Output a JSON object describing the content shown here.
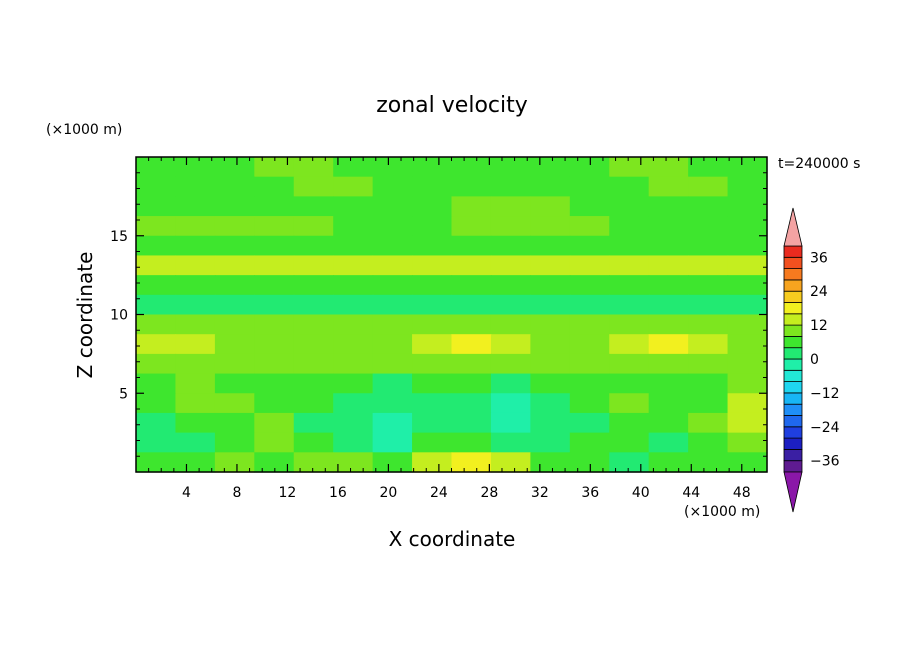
{
  "chart_data": {
    "type": "heatmap",
    "title": "zonal velocity",
    "xlabel": "X coordinate",
    "ylabel": "Z coordinate",
    "x_unit": "(×1000 m)",
    "y_unit": "(×1000 m)",
    "time_label": "t=240000 s",
    "xlim": [
      0,
      50
    ],
    "ylim": [
      0,
      20
    ],
    "x_ticks": [
      4,
      8,
      12,
      16,
      20,
      24,
      28,
      32,
      36,
      40,
      44,
      48
    ],
    "y_ticks": [
      5,
      10,
      15
    ],
    "colorbar": {
      "levels": [
        -40,
        -36,
        -32,
        -28,
        -24,
        -20,
        -16,
        -12,
        -8,
        -4,
        0,
        4,
        8,
        12,
        16,
        20,
        24,
        28,
        32,
        36,
        40
      ],
      "tick_labels": [
        36,
        24,
        12,
        0,
        -12,
        -24,
        -36
      ],
      "colors": [
        "#5f1b91",
        "#3a1fa3",
        "#1c1fc2",
        "#1f3fe0",
        "#1f68ee",
        "#1f8ff7",
        "#18b6f5",
        "#1fd6f0",
        "#22e8d6",
        "#1fefa8",
        "#22ea72",
        "#3ee62e",
        "#7de61f",
        "#c4ee1f",
        "#f2f01f",
        "#f7cc1f",
        "#f7a41f",
        "#f77a1f",
        "#f2501f",
        "#ea2b1f"
      ],
      "over_color": "#f4a3a3",
      "under_color": "#8a17a8"
    },
    "field_rows": [
      [
        1,
        1,
        1,
        2,
        2,
        1,
        1,
        1,
        1,
        1,
        1,
        1,
        2,
        2,
        1,
        1
      ],
      [
        1,
        1,
        1,
        1,
        2,
        2,
        1,
        1,
        1,
        1,
        1,
        1,
        1,
        2,
        2,
        1
      ],
      [
        1,
        1,
        1,
        1,
        1,
        1,
        1,
        1,
        2,
        2,
        2,
        1,
        1,
        1,
        1,
        1
      ],
      [
        2,
        2,
        2,
        2,
        2,
        1,
        1,
        1,
        2,
        2,
        2,
        2,
        1,
        1,
        1,
        1
      ],
      [
        1,
        1,
        1,
        1,
        1,
        1,
        1,
        1,
        1,
        1,
        1,
        1,
        1,
        1,
        1,
        1
      ],
      [
        3,
        3,
        3,
        3,
        3,
        3,
        3,
        3,
        3,
        3,
        3,
        3,
        3,
        3,
        3,
        3
      ],
      [
        1,
        1,
        1,
        1,
        1,
        1,
        1,
        1,
        1,
        1,
        1,
        1,
        1,
        1,
        1,
        1
      ],
      [
        0,
        0,
        0,
        0,
        0,
        0,
        0,
        0,
        0,
        0,
        0,
        0,
        0,
        0,
        0,
        0
      ],
      [
        2,
        2,
        2,
        2,
        2,
        2,
        2,
        2,
        2,
        2,
        2,
        2,
        2,
        2,
        2,
        2
      ],
      [
        3,
        3,
        2,
        2,
        2,
        2,
        2,
        3,
        4,
        3,
        2,
        2,
        3,
        4,
        3,
        2
      ],
      [
        2,
        2,
        2,
        2,
        2,
        2,
        2,
        2,
        2,
        2,
        2,
        2,
        2,
        2,
        2,
        2
      ],
      [
        1,
        2,
        1,
        1,
        1,
        1,
        0,
        1,
        1,
        0,
        1,
        1,
        1,
        1,
        1,
        2
      ],
      [
        1,
        2,
        2,
        1,
        1,
        0,
        0,
        0,
        0,
        -1,
        0,
        1,
        2,
        1,
        1,
        3
      ],
      [
        0,
        1,
        1,
        2,
        0,
        0,
        -1,
        0,
        0,
        -1,
        0,
        0,
        1,
        1,
        2,
        3
      ],
      [
        0,
        0,
        1,
        2,
        1,
        0,
        -1,
        1,
        1,
        0,
        0,
        1,
        1,
        0,
        1,
        2
      ],
      [
        1,
        1,
        2,
        1,
        2,
        2,
        1,
        3,
        4,
        3,
        1,
        1,
        0,
        1,
        1,
        1
      ]
    ]
  }
}
